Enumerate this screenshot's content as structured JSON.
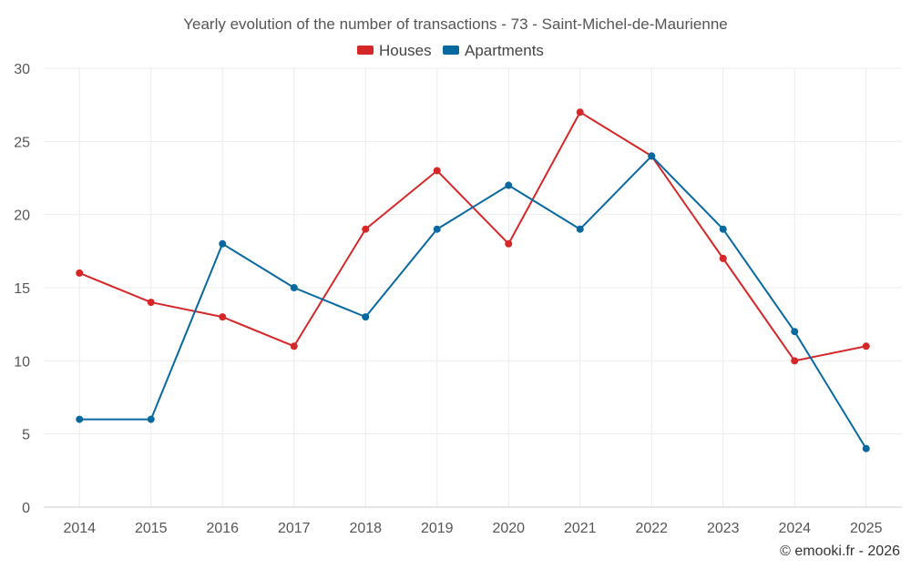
{
  "chart_data": {
    "type": "line",
    "title": "Yearly evolution of the number of transactions - 73 - Saint-Michel-de-Maurienne",
    "x": [
      "2014",
      "2015",
      "2016",
      "2017",
      "2018",
      "2019",
      "2020",
      "2021",
      "2022",
      "2023",
      "2024",
      "2025"
    ],
    "ylim": [
      0,
      30
    ],
    "yticks": [
      0,
      5,
      10,
      15,
      20,
      25,
      30
    ],
    "grid": true,
    "legend_position": "top-center",
    "series": [
      {
        "name": "Houses",
        "color": "#d62728",
        "values": [
          16,
          14,
          13,
          11,
          19,
          23,
          18,
          27,
          24,
          17,
          10,
          11
        ]
      },
      {
        "name": "Apartments",
        "color": "#0868a0",
        "values": [
          6,
          6,
          18,
          15,
          13,
          19,
          22,
          19,
          24,
          19,
          12,
          4
        ]
      }
    ],
    "credit": "© emooki.fr - 2026"
  }
}
